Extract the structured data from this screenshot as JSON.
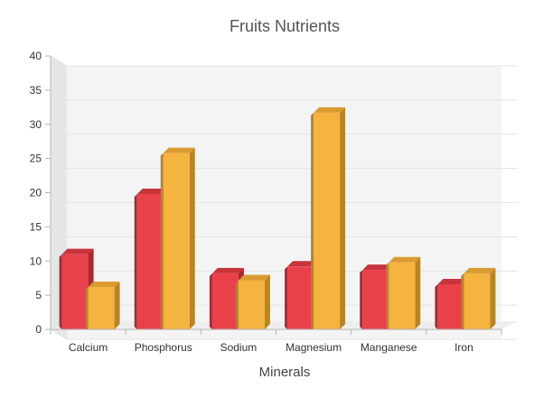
{
  "chart_data": {
    "type": "bar",
    "style": "3d-column",
    "title": "Fruits Nutrients",
    "xlabel": "Minerals",
    "ylabel": "",
    "categories": [
      "Calcium",
      "Phosphorus",
      "Sodium",
      "Magnesium",
      "Manganese",
      "Iron"
    ],
    "ylim": [
      0,
      40
    ],
    "yticks": [
      "0",
      "5",
      "10",
      "15",
      "20",
      "25",
      "30",
      "35",
      "40"
    ],
    "grid": true,
    "legend": "none",
    "series": [
      {
        "values": [
          11,
          19.8,
          8.2,
          9.2,
          8.7,
          6.6
        ],
        "color": "#e8414a",
        "side_color": "#a52a31",
        "top_color": "#c9333b"
      },
      {
        "values": [
          6.2,
          25.8,
          7.2,
          31.7,
          9.8,
          8.2
        ],
        "color": "#f5b33f",
        "side_color": "#b7842a",
        "top_color": "#d99b31"
      }
    ]
  }
}
